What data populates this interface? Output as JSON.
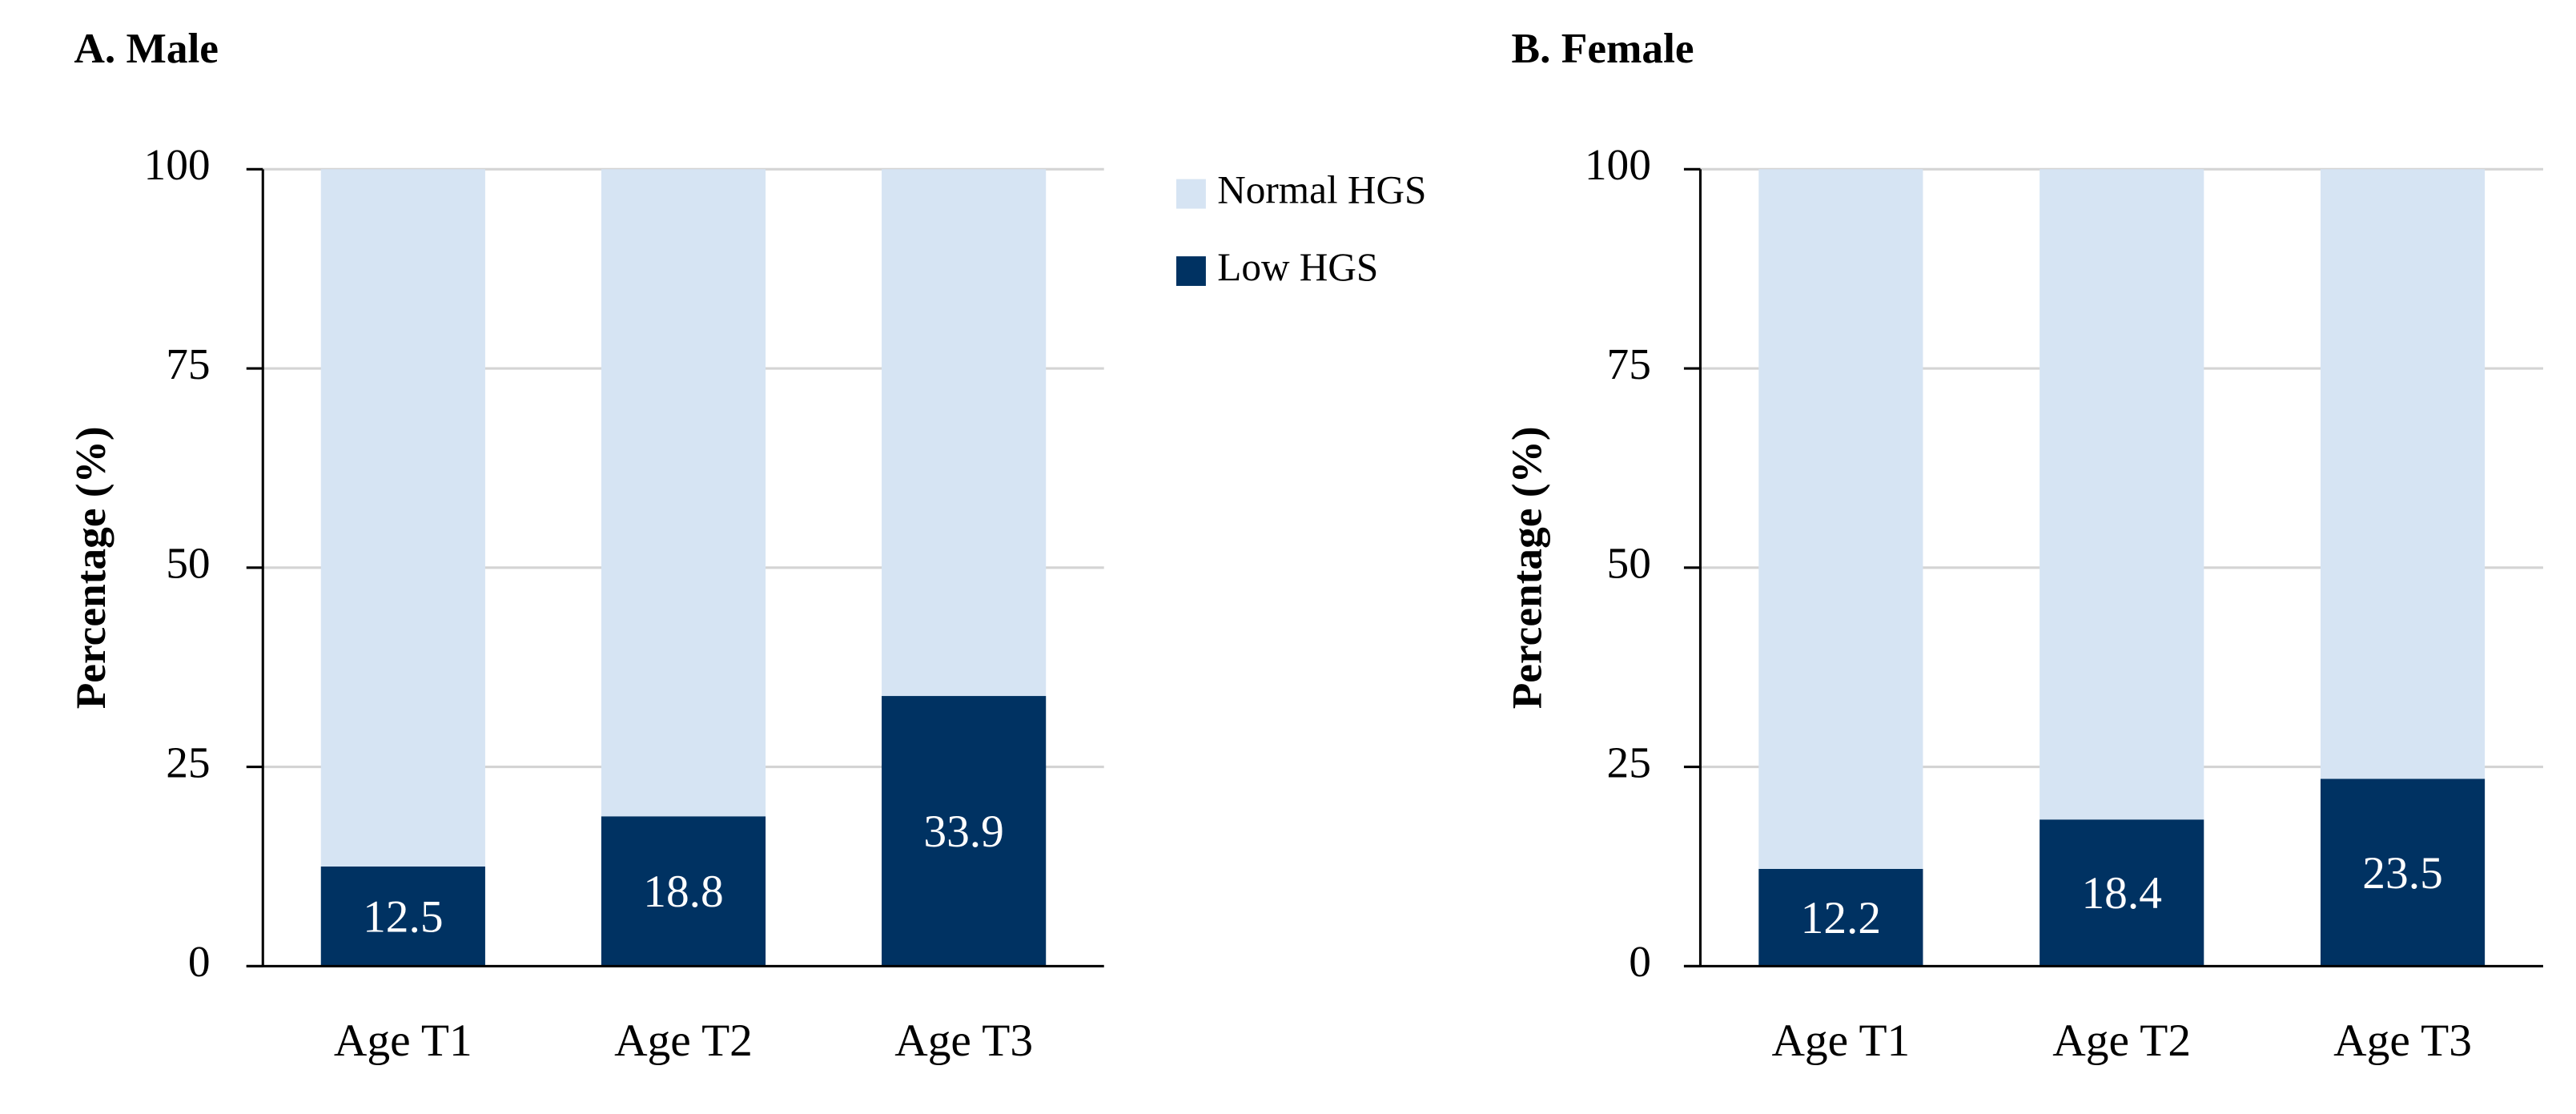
{
  "chart_data": [
    {
      "type": "stacked_bar",
      "title": "A. Male",
      "y_label": "Percentage (%)",
      "categories": [
        "Age T1",
        "Age T2",
        "Age T3"
      ],
      "series": [
        {
          "name": "Low HGS",
          "color": "#003262",
          "values": [
            12.5,
            18.8,
            33.9
          ]
        },
        {
          "name": "Normal HGS",
          "color": "#d6e4f3",
          "values": [
            87.5,
            81.2,
            66.1
          ]
        }
      ],
      "ylim": [
        0,
        100
      ],
      "yticks": [
        0,
        25,
        50,
        75,
        100
      ],
      "grid": true,
      "legend": "right",
      "data_labels": [
        0
      ]
    },
    {
      "type": "stacked_bar",
      "title": "B. Female",
      "y_label": "Percentage (%)",
      "categories": [
        "Age T1",
        "Age T2",
        "Age T3"
      ],
      "series": [
        {
          "name": "Low HGS",
          "color": "#003262",
          "values": [
            12.2,
            18.4,
            23.5
          ]
        },
        {
          "name": "Normal HGS",
          "color": "#d6e4f3",
          "values": [
            87.8,
            81.6,
            76.5
          ]
        }
      ],
      "ylim": [
        0,
        100
      ],
      "yticks": [
        0,
        25,
        50,
        75,
        100
      ],
      "grid": true,
      "data_labels": [
        0
      ]
    }
  ]
}
